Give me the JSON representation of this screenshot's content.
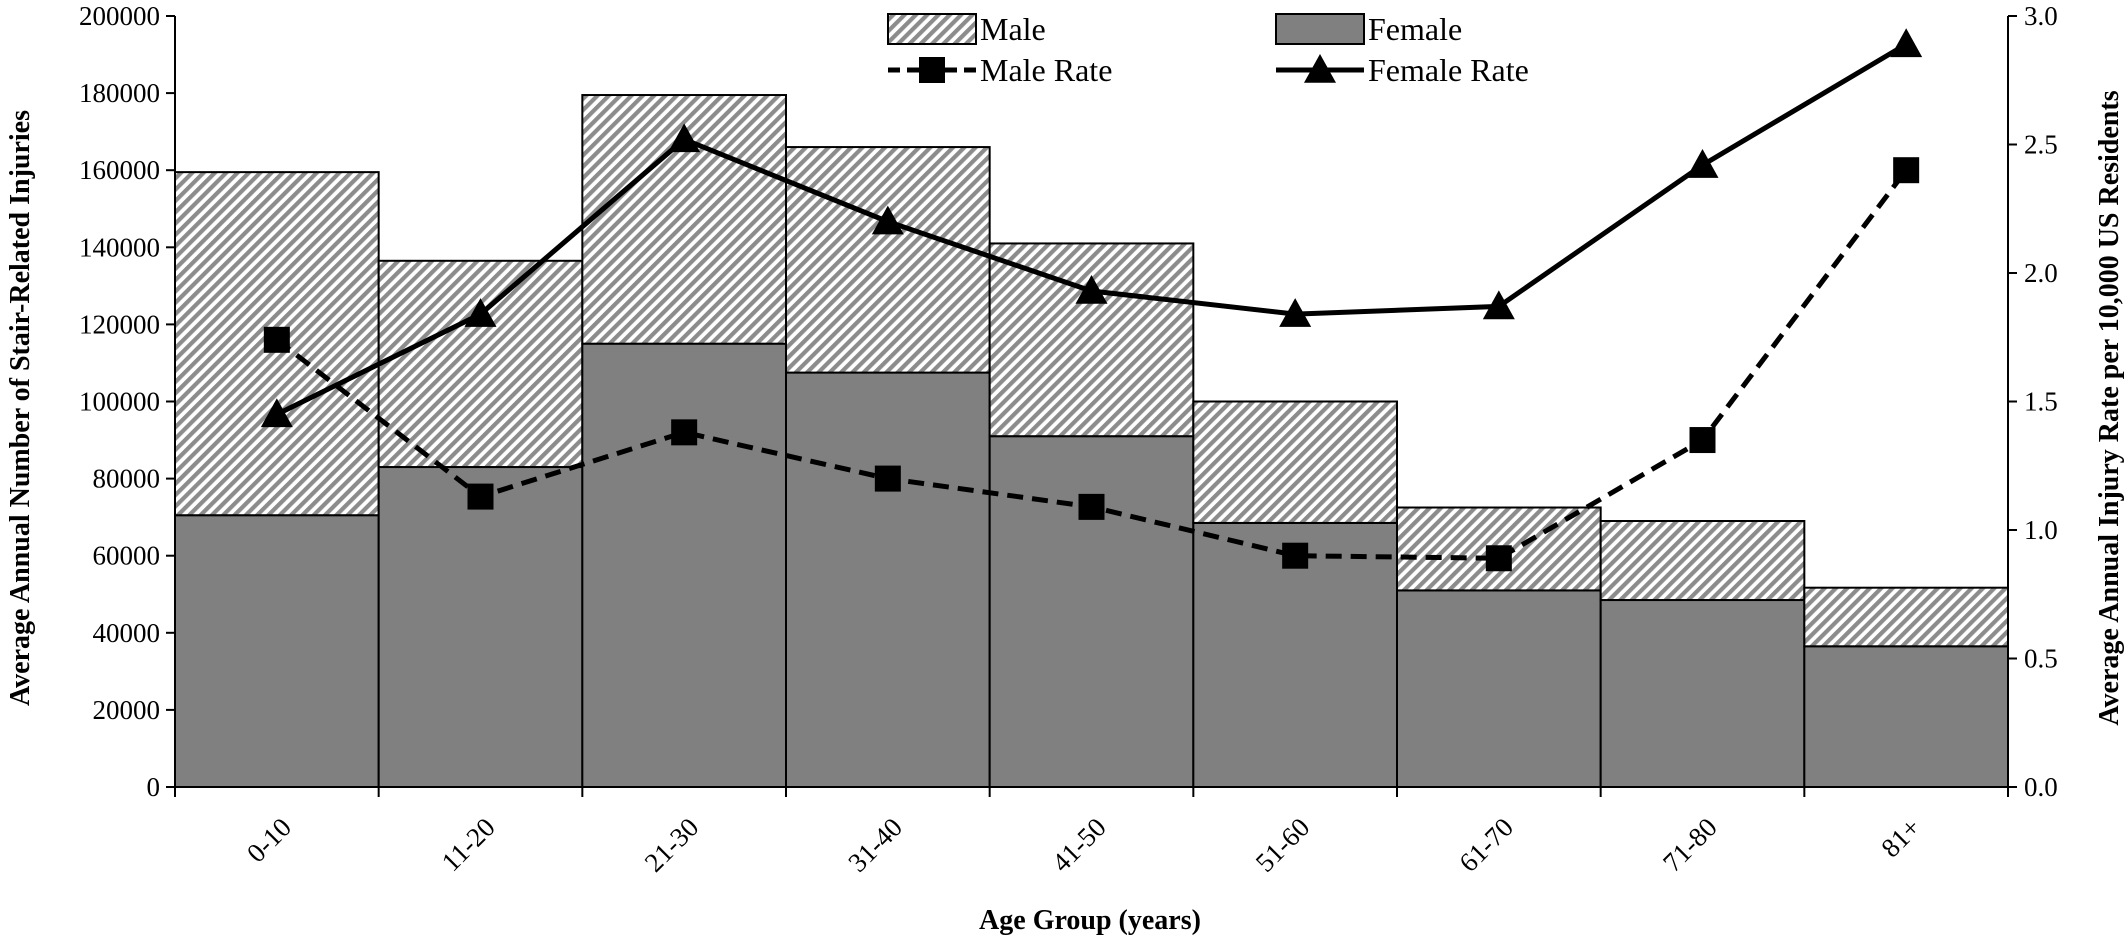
{
  "chart_data": {
    "type": "bar",
    "stacked": true,
    "categories": [
      "0-10",
      "11-20",
      "21-30",
      "31-40",
      "41-50",
      "51-60",
      "61-70",
      "71-80",
      "81+"
    ],
    "series": [
      {
        "name": "Female",
        "kind": "bar",
        "axis": "left",
        "color": "#808080",
        "values": [
          70500,
          83000,
          115000,
          107500,
          91000,
          68500,
          51000,
          48500,
          36500
        ]
      },
      {
        "name": "Male",
        "kind": "bar",
        "axis": "left",
        "pattern": "diagonal-hatch",
        "color": "#9a9a9a",
        "values": [
          89000,
          53500,
          64500,
          58500,
          50000,
          31500,
          21500,
          20500,
          15200
        ]
      },
      {
        "name": "Male Rate",
        "kind": "line",
        "axis": "right",
        "style": "dashed",
        "marker": "square",
        "color": "#000000",
        "values": [
          1.74,
          1.13,
          1.38,
          1.2,
          1.09,
          0.9,
          0.89,
          1.35,
          2.4
        ]
      },
      {
        "name": "Female Rate",
        "kind": "line",
        "axis": "right",
        "style": "solid",
        "marker": "triangle",
        "color": "#000000",
        "values": [
          1.45,
          1.84,
          2.52,
          2.2,
          1.93,
          1.84,
          1.87,
          2.42,
          2.89
        ]
      }
    ],
    "xlabel": "Age Group (years)",
    "ylabel": "Average Annual Number of Stair-Related Injuries",
    "y2label": "Average Annual Injury Rate per 10,000 US Residents",
    "ylim": [
      0,
      200000
    ],
    "y2lim": [
      0,
      3.0
    ],
    "yticks": [
      "0",
      "20000",
      "40000",
      "60000",
      "80000",
      "100000",
      "120000",
      "140000",
      "160000",
      "180000",
      "200000"
    ],
    "y2ticks": [
      "0.0",
      "0.5",
      "1.0",
      "1.5",
      "2.0",
      "2.5",
      "3.0"
    ],
    "grid": false,
    "legend_position": "top",
    "legend": [
      "Male",
      "Female",
      "Male Rate",
      "Female Rate"
    ]
  }
}
